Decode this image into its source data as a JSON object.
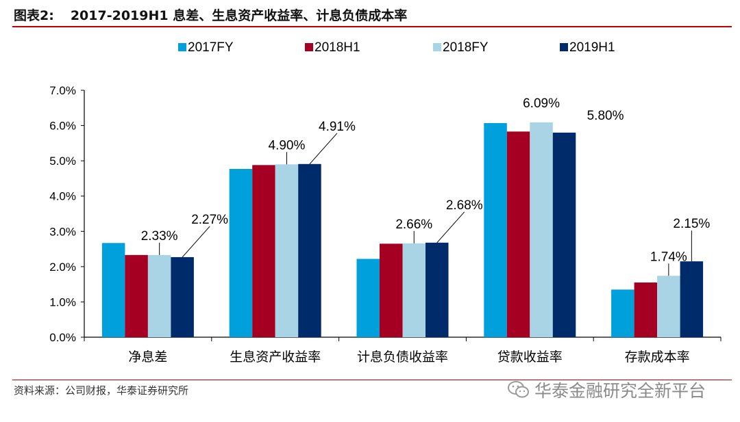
{
  "figure": {
    "label": "图表2:",
    "title": "2017-2019H1 息差、生息资产收益率、计息负债成本率"
  },
  "source": "资料来源：公司财报，华泰证券研究所",
  "watermark": "华泰金融研究全新平台",
  "colors": {
    "accent_rule": "#c00000",
    "series": [
      "#00a0dc",
      "#a50021",
      "#a9d4e6",
      "#002b6b"
    ]
  },
  "chart_data": {
    "type": "bar",
    "title": "",
    "xlabel": "",
    "ylabel": "",
    "ylim": [
      0,
      7
    ],
    "yticks": [
      "0.0%",
      "1.0%",
      "2.0%",
      "3.0%",
      "4.0%",
      "5.0%",
      "6.0%",
      "7.0%"
    ],
    "legend_position": "top",
    "grid": false,
    "categories": [
      "净息差",
      "生息资产收益率",
      "计息负债收益率",
      "贷款收益率",
      "存款成本率"
    ],
    "series": [
      {
        "name": "2017FY",
        "values": [
          2.67,
          4.77,
          2.22,
          6.07,
          1.35
        ]
      },
      {
        "name": "2018H1",
        "values": [
          2.33,
          4.88,
          2.65,
          5.83,
          1.55
        ]
      },
      {
        "name": "2018FY",
        "values": [
          2.33,
          4.9,
          2.66,
          6.09,
          1.74
        ]
      },
      {
        "name": "2019H1",
        "values": [
          2.27,
          4.91,
          2.68,
          5.8,
          2.15
        ]
      }
    ],
    "annotations": [
      {
        "category": 0,
        "series": 2,
        "text": "2.33%"
      },
      {
        "category": 0,
        "series": 3,
        "text": "2.27%"
      },
      {
        "category": 1,
        "series": 2,
        "text": "4.90%"
      },
      {
        "category": 1,
        "series": 3,
        "text": "4.91%"
      },
      {
        "category": 2,
        "series": 2,
        "text": "2.66%"
      },
      {
        "category": 2,
        "series": 3,
        "text": "2.68%"
      },
      {
        "category": 3,
        "series": 2,
        "text": "6.09%"
      },
      {
        "category": 3,
        "series": 3,
        "text": "5.80%"
      },
      {
        "category": 4,
        "series": 2,
        "text": "1.74%"
      },
      {
        "category": 4,
        "series": 3,
        "text": "2.15%"
      }
    ]
  }
}
